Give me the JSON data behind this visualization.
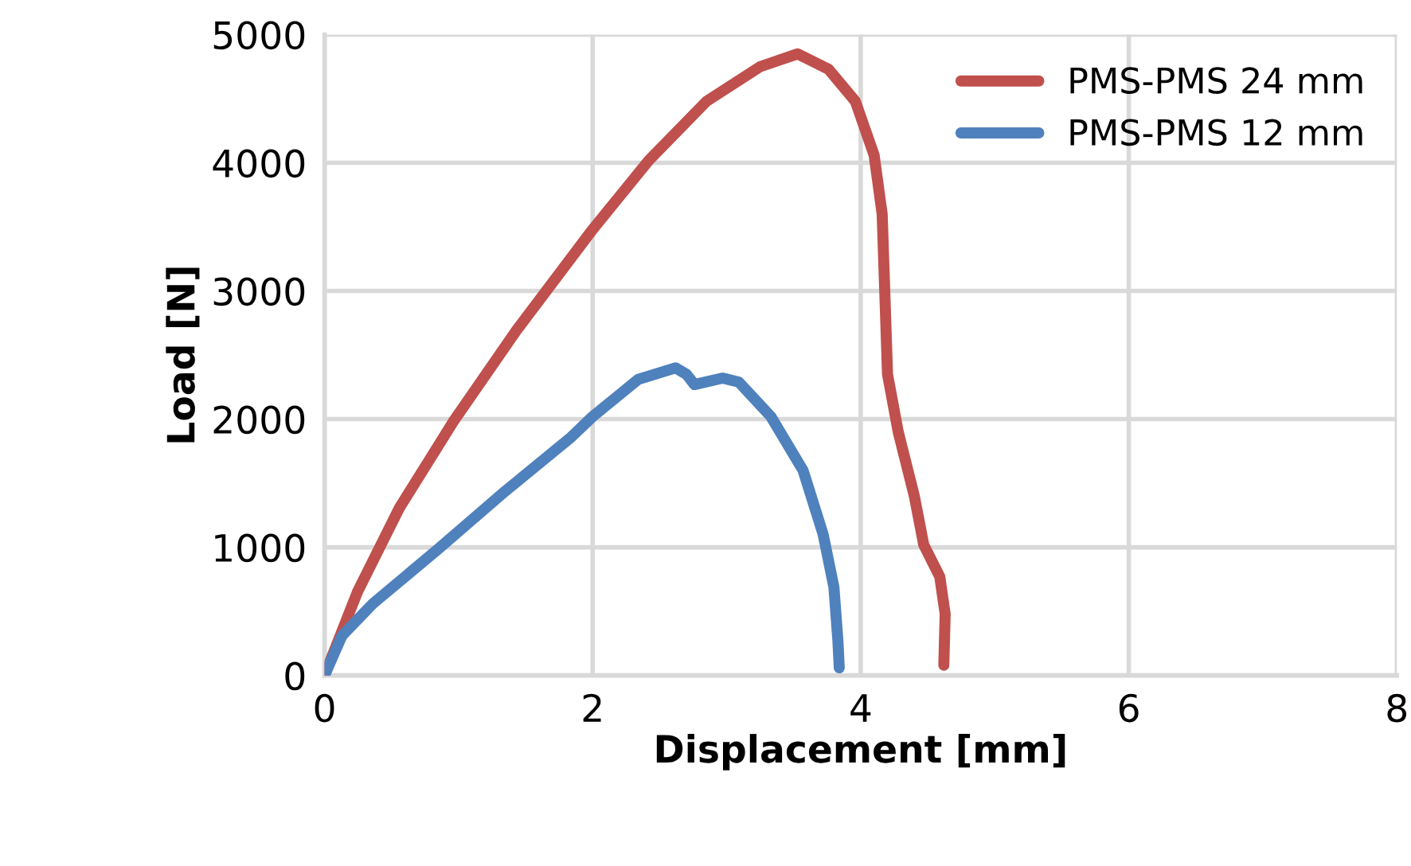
{
  "chart_data": {
    "type": "line",
    "xlabel": "Displacement [mm]",
    "ylabel": "Load [N]",
    "xlim": [
      0,
      8
    ],
    "xticks": [
      0,
      2,
      4,
      6,
      8
    ],
    "ylim": [
      0,
      5000
    ],
    "yticks": [
      0,
      1000,
      2000,
      3000,
      4000,
      5000
    ],
    "grid": true,
    "legend": "top right",
    "marker": "none",
    "line_style": "solid",
    "series": [
      {
        "name": "PMS-PMS 24 mm",
        "color": "#c0504d",
        "x": [
          0,
          0.245,
          0.56,
          0.96,
          1.43,
          2.0,
          2.42,
          2.85,
          3.25,
          3.53,
          3.76,
          3.96,
          4.1,
          4.16,
          4.18,
          4.2,
          4.28,
          4.4,
          4.47,
          4.59,
          4.63,
          4.62
        ],
        "values": [
          0,
          650,
          1310,
          1980,
          2690,
          3480,
          4020,
          4480,
          4750,
          4850,
          4730,
          4480,
          4060,
          3600,
          2980,
          2350,
          1900,
          1400,
          1020,
          770,
          480,
          80
        ]
      },
      {
        "name": "PMS-PMS 12 mm",
        "color": "#4f81bd",
        "x": [
          0,
          0.13,
          0.36,
          0.84,
          1.35,
          1.83,
          2.0,
          2.34,
          2.62,
          2.7,
          2.76,
          2.97,
          3.09,
          3.33,
          3.57,
          3.72,
          3.8,
          3.83,
          3.84
        ],
        "values": [
          0,
          310,
          560,
          980,
          1440,
          1850,
          2020,
          2310,
          2400,
          2350,
          2270,
          2320,
          2290,
          2020,
          1600,
          1100,
          690,
          270,
          60
        ]
      }
    ]
  }
}
